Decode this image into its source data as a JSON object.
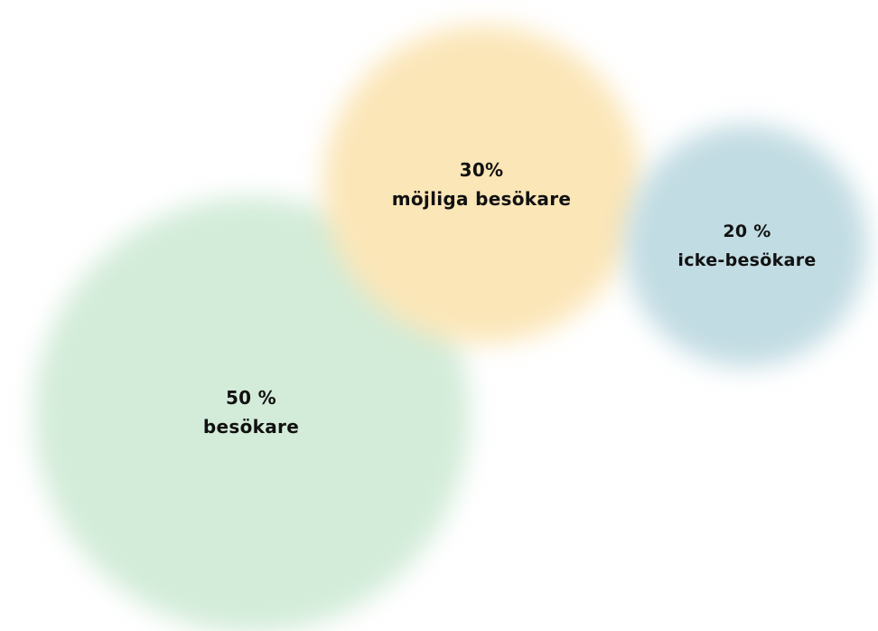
{
  "segments": [
    {
      "id": "besokare",
      "percent_text": "50 %",
      "label": "besökare",
      "share_percent": 50,
      "color": "#d3ecd9"
    },
    {
      "id": "mojliga",
      "percent_text": "30%",
      "label": "möjliga besökare",
      "share_percent": 30,
      "color": "#fbe6b8"
    },
    {
      "id": "icke",
      "percent_text": "20 %",
      "label": "icke-besökare",
      "share_percent": 20,
      "color": "#c2dce3"
    }
  ]
}
